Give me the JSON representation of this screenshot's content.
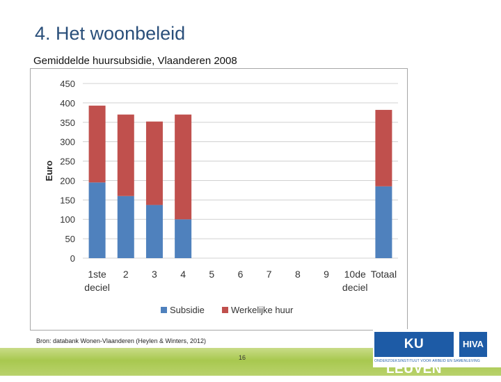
{
  "slide": {
    "title": "4. Het woonbeleid",
    "subtitle": "Gemiddelde huursubsidie, Vlaanderen 2008",
    "source": "Bron: databank Wonen-Vlaanderen (Heylen & Winters, 2012)",
    "page_number": "16"
  },
  "logo": {
    "ku_leuven": "KU LEUVEN",
    "hiva": "HIVA",
    "tagline": "ONDERZOEKSINSTITUUT VOOR ARBEID EN SAMENLEVING"
  },
  "colors": {
    "title": "#2a4f7a",
    "subsidie": "#4f81bd",
    "werkelijke_huur": "#c0504d",
    "bottom_band": "#a8c84f",
    "logo_blue": "#1d5ba6"
  },
  "chart_data": {
    "type": "bar",
    "stacked": true,
    "title": "",
    "xlabel": "",
    "ylabel": "Euro",
    "ylim": [
      0,
      450
    ],
    "yticks": [
      "0",
      "50",
      "100",
      "150",
      "200",
      "250",
      "300",
      "350",
      "400",
      "450"
    ],
    "grid": true,
    "legend_position": "bottom",
    "categories": [
      [
        "1ste",
        "deciel"
      ],
      [
        "2"
      ],
      [
        "3"
      ],
      [
        "4"
      ],
      [
        "5"
      ],
      [
        "6"
      ],
      [
        "7"
      ],
      [
        "8"
      ],
      [
        "9"
      ],
      [
        "10de",
        "deciel"
      ],
      [
        "Totaal"
      ]
    ],
    "series": [
      {
        "name": "Subsidie",
        "color": "#4f81bd",
        "values": [
          195,
          160,
          137,
          100,
          null,
          null,
          null,
          null,
          null,
          null,
          185
        ]
      },
      {
        "name": "Werkelijke huur",
        "color": "#c0504d",
        "values": [
          198,
          210,
          215,
          270,
          null,
          null,
          null,
          null,
          null,
          null,
          197
        ]
      }
    ]
  }
}
